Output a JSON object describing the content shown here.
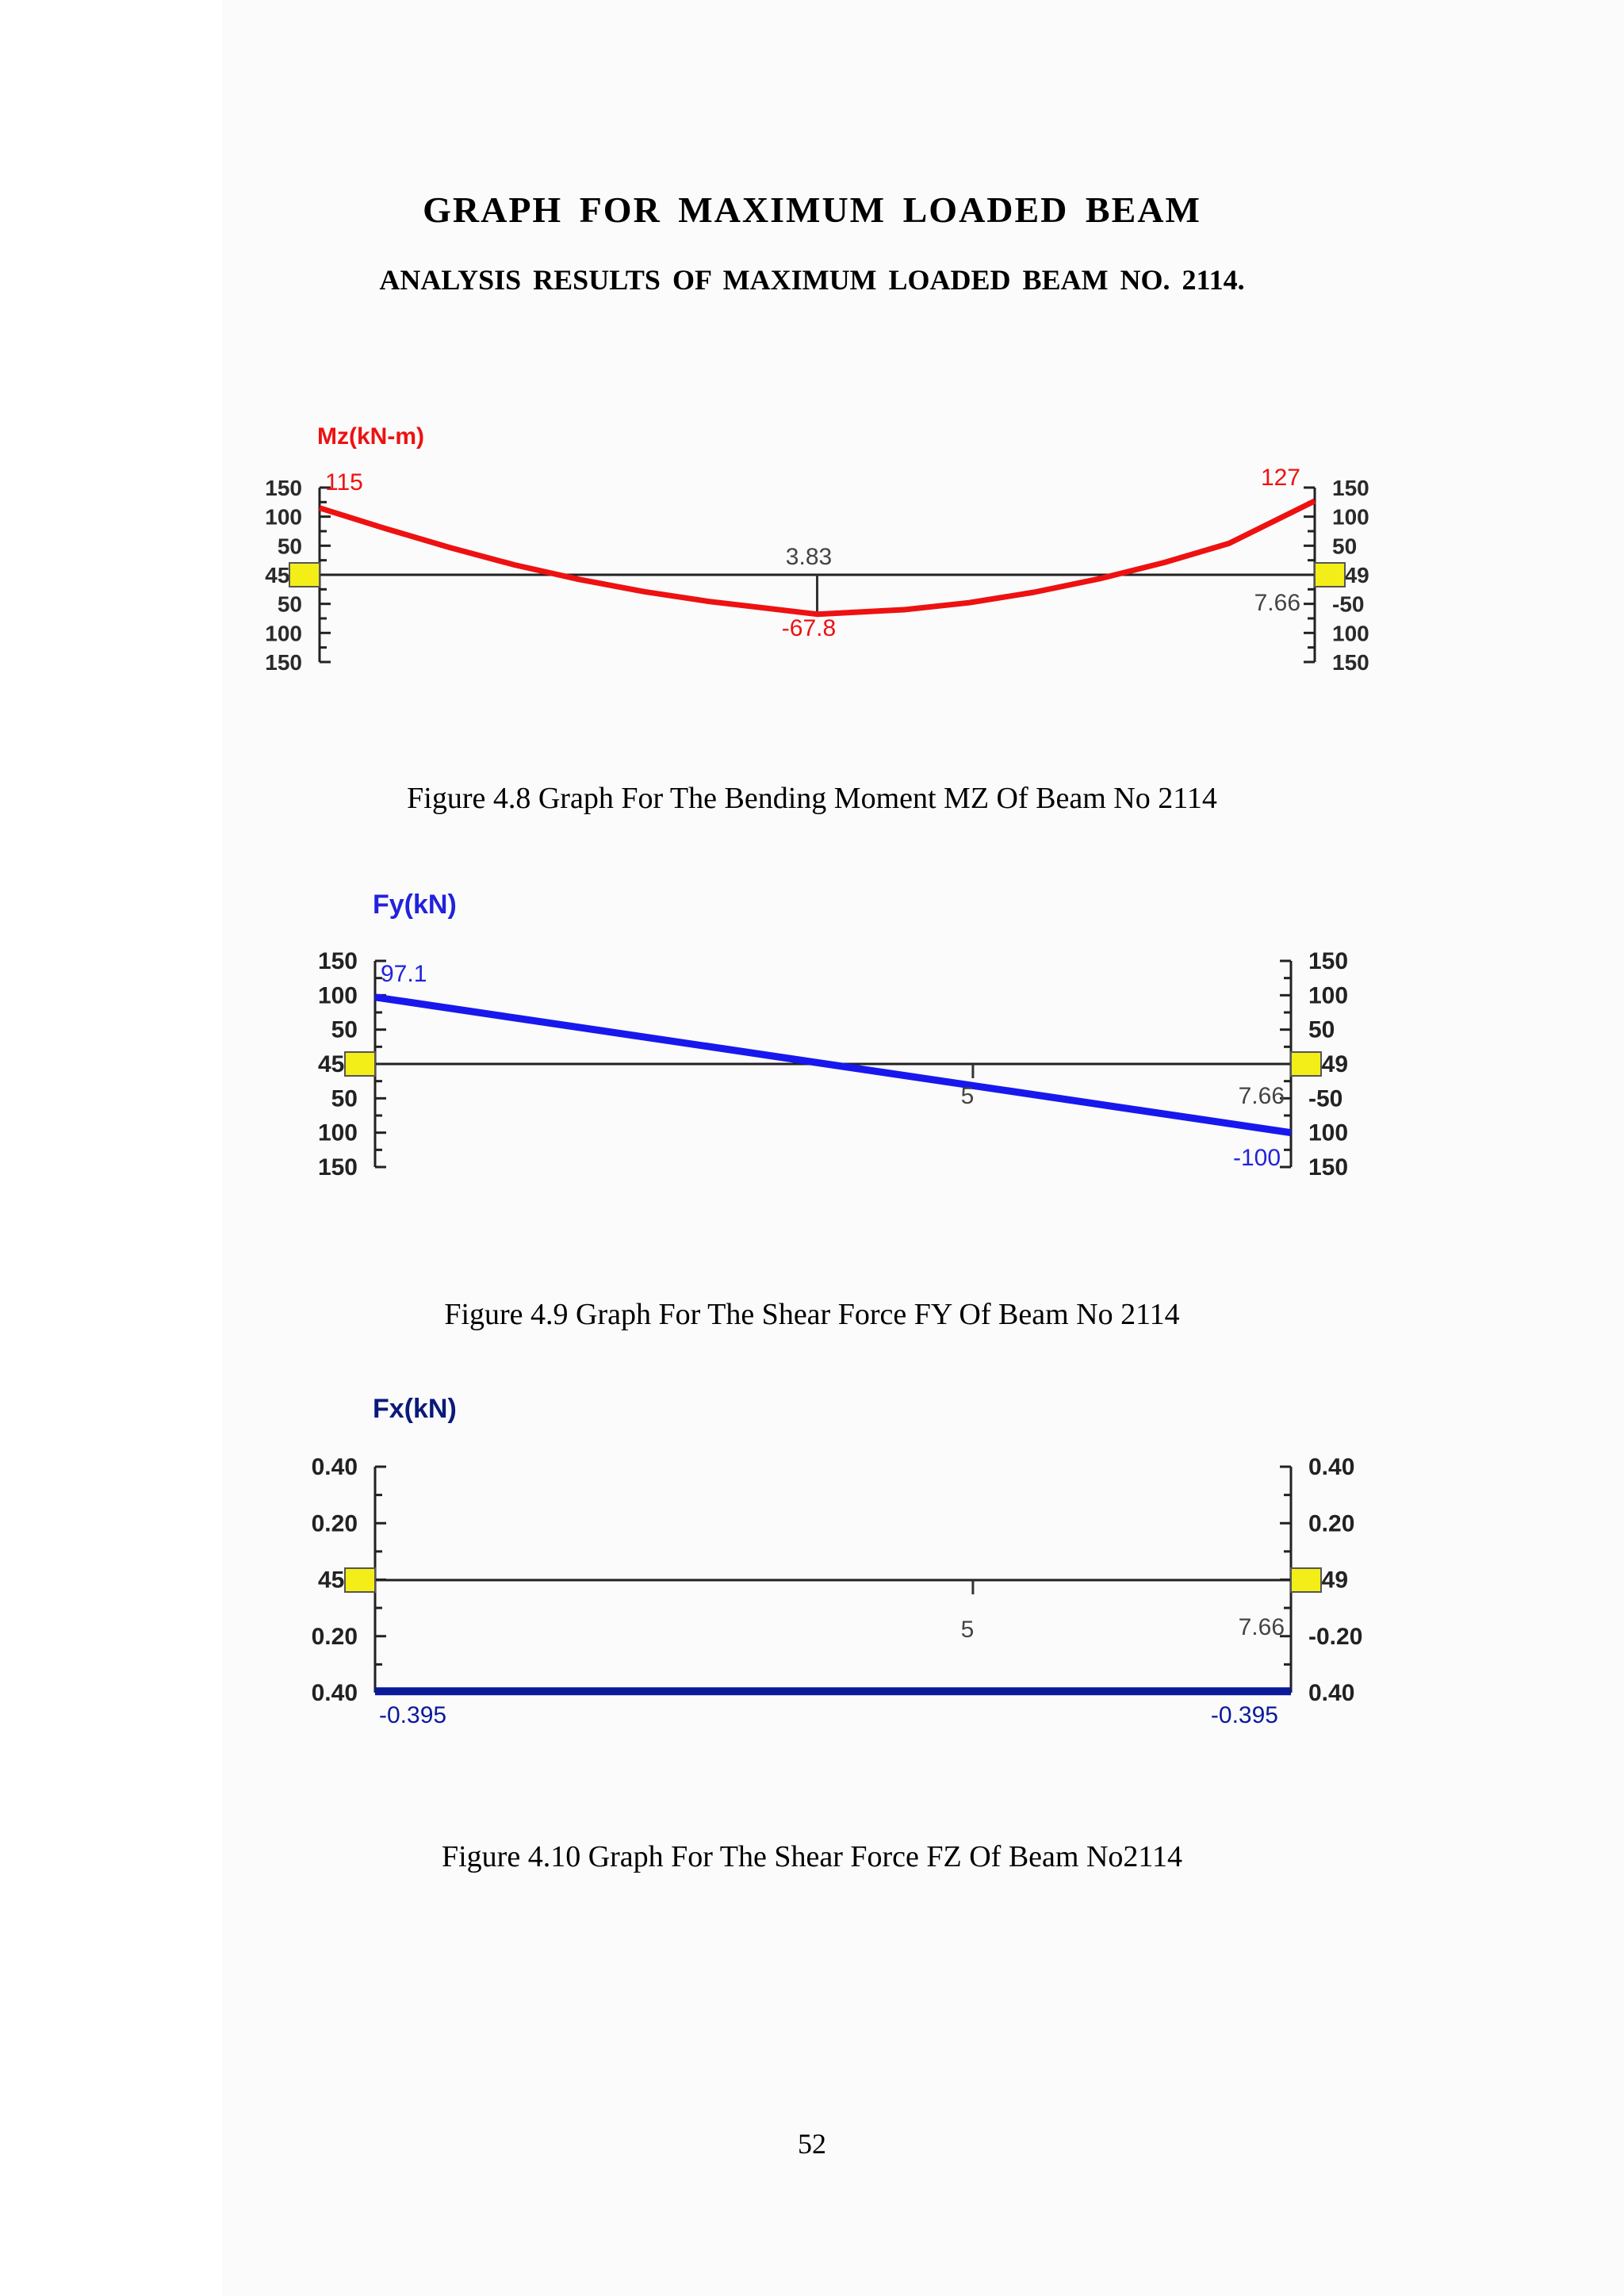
{
  "page": {
    "title": "GRAPH FOR MAXIMUM LOADED BEAM",
    "subtitle": "ANALYSIS RESULTS OF MAXIMUM LOADED BEAM NO. 2114.",
    "page_number": "52"
  },
  "colors": {
    "moment": "#ee1111",
    "shear_y": "#1818ee",
    "shear_x": "#0a1a9a",
    "node": "#f4ee18"
  },
  "chart_data": [
    {
      "type": "line",
      "caption": "Figure 4.8 Graph For The Bending Moment MZ Of Beam No 2114",
      "title": "Mz(kN-m)",
      "ylim": [
        -150,
        150
      ],
      "left_ticks": [
        "150",
        "100",
        "50",
        "451",
        "50",
        "100",
        "150"
      ],
      "right_ticks": [
        "150",
        "100",
        "50",
        "449",
        "-50",
        "100",
        "150"
      ],
      "left_node": "451",
      "right_node": "449",
      "x": [
        0,
        0.5,
        1,
        1.5,
        2,
        2.5,
        3,
        3.5,
        3.83,
        4.5,
        5,
        5.5,
        6,
        6.5,
        7,
        7.66
      ],
      "series": [
        {
          "values": [
            115,
            80,
            47,
            17,
            -8,
            -29,
            -46,
            -59,
            -67.8,
            -60,
            -48,
            -30,
            -7,
            21,
            54,
            127
          ]
        }
      ],
      "annotations": [
        "115",
        "127",
        "3.83",
        "-67.8",
        "7.66"
      ]
    },
    {
      "type": "line",
      "caption": "Figure 4.9 Graph For The Shear Force FY Of Beam No 2114",
      "title": "Fy(kN)",
      "ylim": [
        -150,
        150
      ],
      "left_ticks": [
        "150",
        "100",
        "50",
        "451",
        "50",
        "100",
        "150"
      ],
      "right_ticks": [
        "150",
        "100",
        "50",
        "449",
        "-50",
        "100",
        "150"
      ],
      "left_node": "451",
      "right_node": "449",
      "x": [
        0,
        7.66
      ],
      "series": [
        {
          "values": [
            97.1,
            -100
          ]
        }
      ],
      "annotations": [
        "97.1",
        "5",
        "7.66",
        "-100"
      ]
    },
    {
      "type": "line",
      "caption": "Figure 4.10 Graph For The Shear Force FZ Of Beam No2114",
      "title": "Fx(kN)",
      "ylim": [
        -0.4,
        0.4
      ],
      "left_ticks": [
        "0.40",
        "0.20",
        "451",
        "0.20",
        "0.40"
      ],
      "right_ticks": [
        "0.40",
        "0.20",
        "449",
        "-0.20",
        "0.40"
      ],
      "left_node": "451",
      "right_node": "449",
      "x": [
        0,
        7.66
      ],
      "series": [
        {
          "values": [
            -0.395,
            -0.395
          ]
        }
      ],
      "annotations": [
        "-0.395",
        "5",
        "7.66",
        "-0.395"
      ]
    }
  ]
}
